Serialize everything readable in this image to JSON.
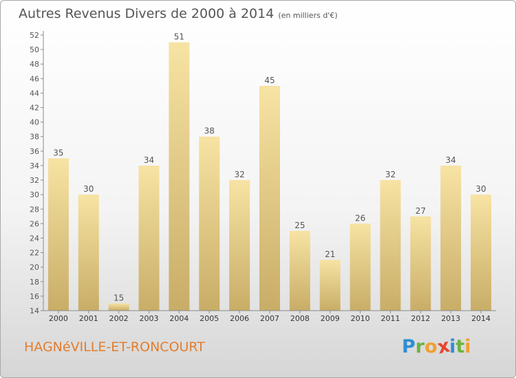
{
  "header": {
    "title": "Autres Revenus Divers de 2000 à 2014",
    "unit": "(en milliers d'€)"
  },
  "footer": {
    "commune": "HAGNéVILLE-ET-RONCOURT"
  },
  "brand": {
    "name": "Proxiti",
    "letters": [
      {
        "ch": "P",
        "color": "#2d8fd4"
      },
      {
        "ch": "r",
        "color": "#6cb43f"
      },
      {
        "ch": "o",
        "color": "#f0a030"
      },
      {
        "ch": "x",
        "color": "#e8452c"
      },
      {
        "ch": "i",
        "color": "#2d8fd4"
      },
      {
        "ch": "t",
        "color": "#6cb43f"
      },
      {
        "ch": "i",
        "color": "#f0a030"
      }
    ]
  },
  "colors": {
    "bar_light": "#f7e3a3",
    "bar_dark": "#c8ad67",
    "axis": "#8a8a8a",
    "text": "#555555",
    "commune": "#e27d2d"
  },
  "chart_data": {
    "type": "bar",
    "title": "Autres Revenus Divers de 2000 à 2014",
    "subtitle": "(en milliers d'€)",
    "xlabel": "",
    "ylabel": "",
    "categories": [
      "2000",
      "2001",
      "2002",
      "2003",
      "2004",
      "2005",
      "2006",
      "2007",
      "2008",
      "2009",
      "2010",
      "2011",
      "2012",
      "2013",
      "2014"
    ],
    "values": [
      35,
      30,
      15,
      34,
      51,
      38,
      32,
      45,
      25,
      21,
      26,
      32,
      27,
      34,
      30
    ],
    "ylim": [
      14,
      52
    ],
    "yticks": [
      14,
      16,
      18,
      20,
      22,
      24,
      26,
      28,
      30,
      32,
      34,
      36,
      38,
      40,
      42,
      44,
      46,
      48,
      50,
      52
    ],
    "grid": false,
    "legend": "none"
  }
}
